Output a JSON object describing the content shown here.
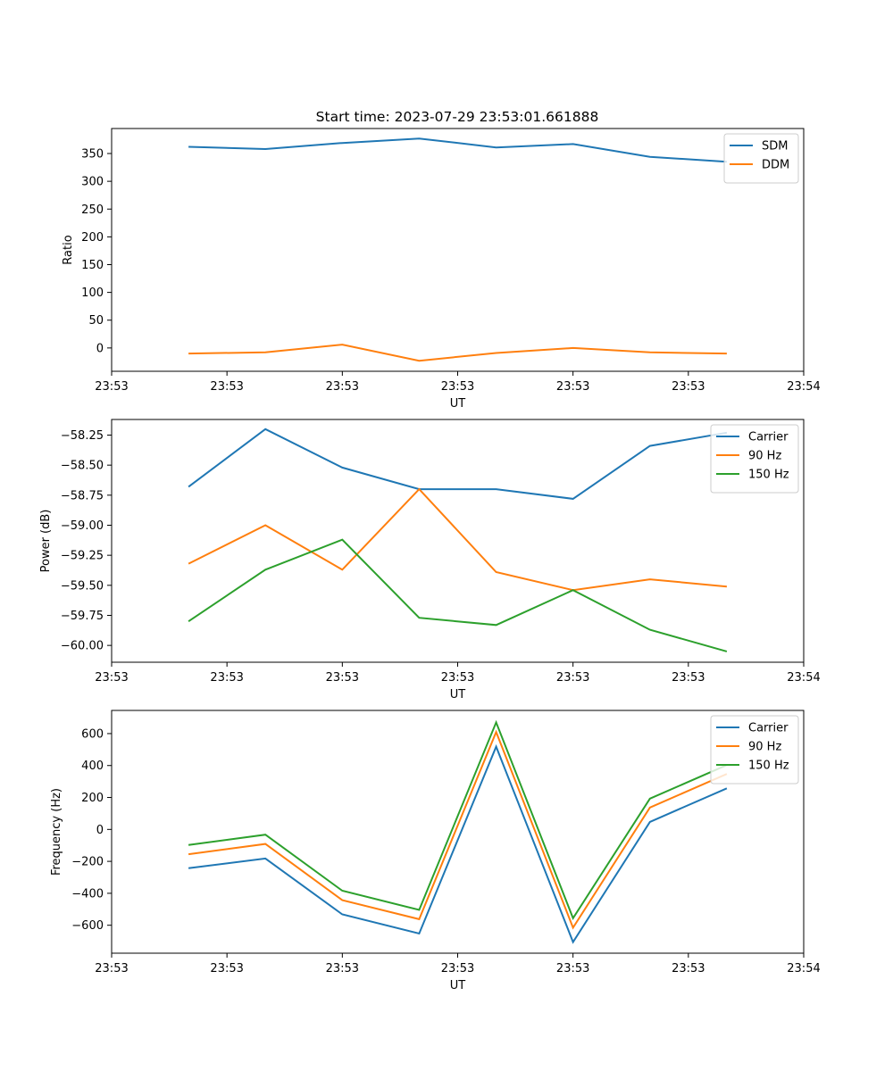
{
  "figure_title": "Start time: 2023-07-29 23:53:01.661888",
  "colors": {
    "c0": "#1f77b4",
    "c1": "#ff7f0e",
    "c2": "#2ca02c"
  },
  "chart_data": [
    {
      "type": "line",
      "title": "Start time: 2023-07-29 23:53:01.661888",
      "xlabel": "UT",
      "ylabel": "Ratio",
      "x": [
        1,
        2,
        3,
        4,
        5,
        6,
        7,
        8
      ],
      "xlim": [
        0,
        9
      ],
      "xticks": [
        0,
        1.5,
        3,
        4.5,
        6,
        7.5,
        9
      ],
      "xtick_labels": [
        "23:53",
        "23:53",
        "23:53",
        "23:53",
        "23:53",
        "23:53",
        "23:54"
      ],
      "ylim": [
        -42,
        395
      ],
      "yticks": [
        0,
        50,
        100,
        150,
        200,
        250,
        300,
        350
      ],
      "ytick_labels": [
        "0",
        "50",
        "100",
        "150",
        "200",
        "250",
        "300",
        "350"
      ],
      "legend_position": "top-right",
      "series": [
        {
          "name": "SDM",
          "color": "#1f77b4",
          "values": [
            362,
            358,
            369,
            377,
            361,
            367,
            344,
            335
          ]
        },
        {
          "name": "DDM",
          "color": "#ff7f0e",
          "values": [
            -10,
            -8,
            6,
            -23,
            -9,
            0,
            -8,
            -10
          ]
        }
      ]
    },
    {
      "type": "line",
      "xlabel": "UT",
      "ylabel": "Power (dB)",
      "x": [
        1,
        2,
        3,
        4,
        5,
        6,
        7,
        8
      ],
      "xlim": [
        0,
        9
      ],
      "xticks": [
        0,
        1.5,
        3,
        4.5,
        6,
        7.5,
        9
      ],
      "xtick_labels": [
        "23:53",
        "23:53",
        "23:53",
        "23:53",
        "23:53",
        "23:53",
        "23:54"
      ],
      "ylim": [
        -60.14,
        -58.12
      ],
      "yticks": [
        -60.0,
        -59.75,
        -59.5,
        -59.25,
        -59.0,
        -58.75,
        -58.5,
        -58.25
      ],
      "ytick_labels": [
        "−60.00",
        "−59.75",
        "−59.50",
        "−59.25",
        "−59.00",
        "−58.75",
        "−58.50",
        "−58.25"
      ],
      "legend_position": "top-right",
      "series": [
        {
          "name": "Carrier",
          "color": "#1f77b4",
          "values": [
            -58.68,
            -58.2,
            -58.52,
            -58.7,
            -58.7,
            -58.78,
            -58.34,
            -58.23
          ]
        },
        {
          "name": "90 Hz",
          "color": "#ff7f0e",
          "values": [
            -59.32,
            -59.0,
            -59.37,
            -58.7,
            -59.39,
            -59.54,
            -59.45,
            -59.51
          ]
        },
        {
          "name": "150 Hz",
          "color": "#2ca02c",
          "values": [
            -59.8,
            -59.37,
            -59.12,
            -59.77,
            -59.83,
            -59.54,
            -59.87,
            -60.05
          ]
        }
      ]
    },
    {
      "type": "line",
      "xlabel": "UT",
      "ylabel": "Frequency (Hz)",
      "x": [
        1,
        2,
        3,
        4,
        5,
        6,
        7,
        8
      ],
      "xlim": [
        0,
        9
      ],
      "xticks": [
        0,
        1.5,
        3,
        4.5,
        6,
        7.5,
        9
      ],
      "xtick_labels": [
        "23:53",
        "23:53",
        "23:53",
        "23:53",
        "23:53",
        "23:53",
        "23:54"
      ],
      "ylim": [
        -775,
        745
      ],
      "yticks": [
        -600,
        -400,
        -200,
        0,
        200,
        400,
        600
      ],
      "ytick_labels": [
        "−600",
        "−400",
        "−200",
        "0",
        "200",
        "400",
        "600"
      ],
      "legend_position": "top-right",
      "series": [
        {
          "name": "Carrier",
          "color": "#1f77b4",
          "values": [
            -243,
            -182,
            -532,
            -652,
            518,
            -705,
            47,
            257
          ]
        },
        {
          "name": "90 Hz",
          "color": "#ff7f0e",
          "values": [
            -155,
            -91,
            -443,
            -562,
            610,
            -615,
            137,
            347
          ]
        },
        {
          "name": "150 Hz",
          "color": "#2ca02c",
          "values": [
            -97,
            -33,
            -384,
            -504,
            670,
            -556,
            193,
            403
          ]
        }
      ]
    }
  ]
}
